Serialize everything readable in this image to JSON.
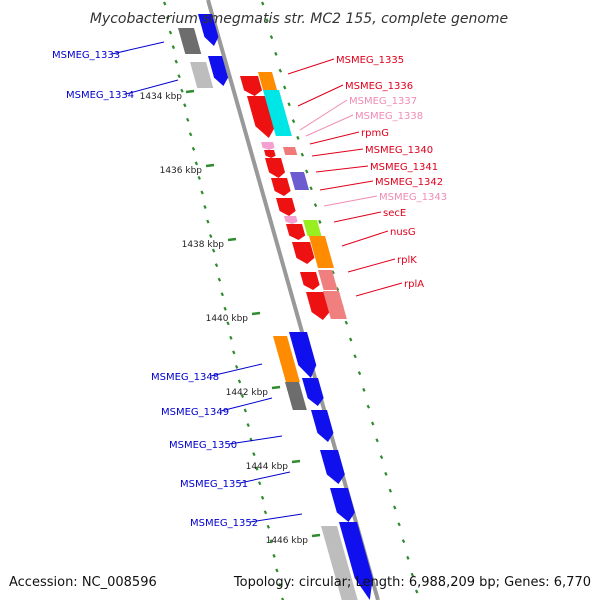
{
  "title": "Mycobacterium smegmatis str. MC2 155, complete genome",
  "accession": "Accession: NC_008596",
  "summary": "Topology: circular; Length: 6,988,209 bp; Genes: 6,770",
  "colors": {
    "axis": "#999999",
    "dots": "#2e8b2e",
    "left_labels": "#0000cc",
    "right_labels": "#e0001b",
    "right_labels_light": "#f08cb4"
  },
  "scale_ticks": [
    "1434 kbp",
    "1436 kbp",
    "1438 kbp",
    "1440 kbp",
    "1442 kbp",
    "1444 kbp",
    "1446 kbp"
  ],
  "left_genes": [
    "MSMEG_1333",
    "MSMEG_1334",
    "MSMEG_1348",
    "MSMEG_1349",
    "MSMEG_1350",
    "MSMEG_1351",
    "MSMEG_1352"
  ],
  "right_genes": [
    {
      "label": "MSMEG_1335",
      "tone": "strong"
    },
    {
      "label": "MSMEG_1336",
      "tone": "strong"
    },
    {
      "label": "MSMEG_1337",
      "tone": "light"
    },
    {
      "label": "MSMEG_1338",
      "tone": "light"
    },
    {
      "label": "rpmG",
      "tone": "strong"
    },
    {
      "label": "MSMEG_1340",
      "tone": "strong"
    },
    {
      "label": "MSMEG_1341",
      "tone": "strong"
    },
    {
      "label": "MSMEG_1342",
      "tone": "strong"
    },
    {
      "label": "MSMEG_1343",
      "tone": "light"
    },
    {
      "label": "secE",
      "tone": "strong"
    },
    {
      "label": "nusG",
      "tone": "strong"
    },
    {
      "label": "rplK",
      "tone": "strong"
    },
    {
      "label": "rplA",
      "tone": "strong"
    }
  ]
}
